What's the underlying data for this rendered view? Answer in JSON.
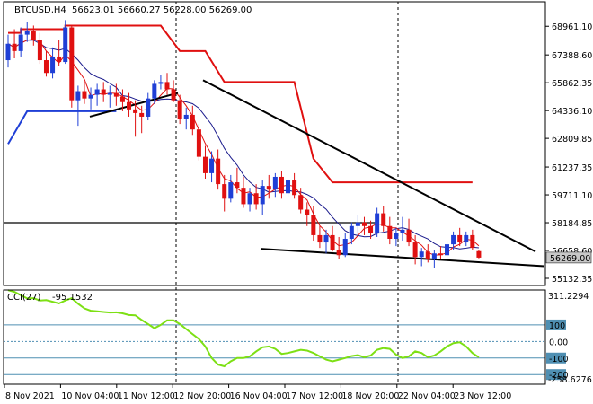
{
  "header": {
    "symbol": "BTCUSD,H4",
    "ohlc": "56623.01 56660.27 56228.00 56269.00"
  },
  "indicator": {
    "name": "CCI(27)",
    "value": "-95.1532",
    "levels": [
      "100",
      "0.00",
      "-100",
      "-200"
    ],
    "scale_max_label": "311.2294",
    "scale_min_label": "-258.6276"
  },
  "colors": {
    "bull": "#1f3fd6",
    "bear": "#e01010",
    "channel_upper": "#e01010",
    "channel_lower": "#1f3fd6",
    "ma_fast": "#e01010",
    "ma_slow": "#1a1a8c",
    "cci": "#7de014",
    "trendline": "#000000",
    "grid": "#000000",
    "level_line": "#4f8fb2"
  },
  "chart_data": [
    {
      "type": "candlestick",
      "title": "BTCUSD,H4",
      "ylim": [
        55132.35,
        70500
      ],
      "y_ticks": [
        "68961.10",
        "67388.60",
        "65862.35",
        "64336.10",
        "62809.85",
        "61237.35",
        "59711.10",
        "58184.85",
        "56658.60",
        "55132.35"
      ],
      "x_ticks": [
        "8 Nov 2021",
        "10 Nov 04:00",
        "11 Nov 12:00",
        "12 Nov 20:00",
        "16 Nov 04:00",
        "17 Nov 12:00",
        "18 Nov 20:00",
        "22 Nov 04:00",
        "23 Nov 12:00"
      ],
      "current_price": 56269.0,
      "current_price_label": "56269.00",
      "candles": [
        [
          67100,
          68500,
          66700,
          68000
        ],
        [
          68000,
          68800,
          67200,
          67600
        ],
        [
          67600,
          68900,
          67300,
          68500
        ],
        [
          68500,
          69200,
          68100,
          68700
        ],
        [
          68700,
          69000,
          67900,
          68200
        ],
        [
          68200,
          68600,
          66900,
          67100
        ],
        [
          67100,
          67600,
          66200,
          66400
        ],
        [
          66400,
          67800,
          66100,
          67300
        ],
        [
          67300,
          68200,
          66800,
          67000
        ],
        [
          67000,
          69300,
          66900,
          68900
        ],
        [
          68900,
          69000,
          64500,
          64900
        ],
        [
          64900,
          65700,
          63500,
          65400
        ],
        [
          65400,
          65900,
          64700,
          65000
        ],
        [
          65000,
          65600,
          64400,
          65200
        ],
        [
          65200,
          65800,
          64600,
          65500
        ],
        [
          65500,
          65900,
          64800,
          65200
        ],
        [
          65200,
          65700,
          64500,
          65300
        ],
        [
          65300,
          65800,
          64600,
          65100
        ],
        [
          65100,
          65500,
          64300,
          64800
        ],
        [
          64800,
          65300,
          64000,
          64400
        ],
        [
          64400,
          64900,
          62900,
          64200
        ],
        [
          64200,
          64600,
          63100,
          64000
        ],
        [
          64000,
          65300,
          63800,
          65000
        ],
        [
          65000,
          66000,
          64700,
          65800
        ],
        [
          65800,
          66300,
          65500,
          65900
        ],
        [
          65900,
          66400,
          65200,
          65500
        ],
        [
          65500,
          66000,
          64800,
          64900
        ],
        [
          64900,
          65200,
          63600,
          63900
        ],
        [
          63900,
          64500,
          63300,
          64100
        ],
        [
          64100,
          64600,
          63000,
          63300
        ],
        [
          63300,
          63600,
          61600,
          61800
        ],
        [
          61800,
          62400,
          60600,
          60900
        ],
        [
          60900,
          62100,
          60400,
          61700
        ],
        [
          61700,
          62200,
          60000,
          60300
        ],
        [
          60300,
          60800,
          58800,
          59500
        ],
        [
          59500,
          60800,
          59300,
          60400
        ],
        [
          60400,
          61200,
          59800,
          60100
        ],
        [
          60100,
          60700,
          59000,
          59200
        ],
        [
          59200,
          60100,
          58800,
          59800
        ],
        [
          59800,
          60300,
          58900,
          59200
        ],
        [
          59200,
          60500,
          58600,
          60200
        ],
        [
          60200,
          60800,
          59500,
          60000
        ],
        [
          60000,
          60900,
          59600,
          60700
        ],
        [
          60700,
          61000,
          59500,
          59800
        ],
        [
          59800,
          60600,
          59600,
          60500
        ],
        [
          60500,
          60900,
          59500,
          59700
        ],
        [
          59700,
          60100,
          58700,
          58900
        ],
        [
          58900,
          59300,
          58000,
          58600
        ],
        [
          58600,
          59100,
          57200,
          57500
        ],
        [
          57500,
          58000,
          56800,
          57100
        ],
        [
          57100,
          57800,
          56500,
          57500
        ],
        [
          57500,
          58000,
          56600,
          56700
        ],
        [
          56700,
          57400,
          56200,
          56400
        ],
        [
          56400,
          57600,
          56300,
          57300
        ],
        [
          57300,
          58200,
          57000,
          58000
        ],
        [
          58000,
          58600,
          57500,
          58200
        ],
        [
          58200,
          58500,
          57500,
          58000
        ],
        [
          58000,
          58300,
          57300,
          57600
        ],
        [
          57600,
          59000,
          57400,
          58700
        ],
        [
          58700,
          59100,
          57700,
          58000
        ],
        [
          58000,
          58500,
          57000,
          57300
        ],
        [
          57300,
          57900,
          56900,
          57600
        ],
        [
          57600,
          58500,
          57200,
          57800
        ],
        [
          57800,
          58400,
          56900,
          57100
        ],
        [
          57100,
          57500,
          55900,
          56300
        ],
        [
          56300,
          56800,
          55800,
          56600
        ],
        [
          56600,
          57000,
          56000,
          56200
        ],
        [
          56200,
          56700,
          55700,
          56500
        ],
        [
          56500,
          56900,
          56200,
          56400
        ],
        [
          56400,
          57200,
          56100,
          57000
        ],
        [
          57000,
          57700,
          56700,
          57500
        ],
        [
          57500,
          57900,
          56900,
          57100
        ],
        [
          57100,
          57700,
          56900,
          57500
        ],
        [
          57500,
          57800,
          56700,
          56800
        ],
        [
          56623.01,
          56660.27,
          56228.0,
          56269.0
        ]
      ],
      "channel_upper": [
        [
          0,
          68600
        ],
        [
          2,
          68600
        ],
        [
          2,
          68800
        ],
        [
          9,
          68800
        ],
        [
          9,
          69000
        ],
        [
          24,
          69000
        ],
        [
          27,
          67600
        ],
        [
          31,
          67600
        ],
        [
          34,
          65900
        ],
        [
          45,
          65900
        ],
        [
          48,
          61700
        ],
        [
          51,
          60400
        ],
        [
          73,
          60400
        ]
      ],
      "channel_lower": [
        [
          0,
          62500
        ],
        [
          3,
          64300
        ],
        [
          14,
          64300
        ],
        [
          17,
          64300
        ]
      ]
    },
    {
      "type": "line",
      "title": "CCI(27) -95.1532",
      "ylim": [
        -258.6276,
        311.2294
      ],
      "levels": [
        100,
        0,
        -100,
        -200
      ],
      "values": [
        310,
        300,
        280,
        260,
        262,
        248,
        250,
        240,
        230,
        248,
        262,
        228,
        200,
        186,
        182,
        178,
        175,
        176,
        170,
        160,
        158,
        130,
        105,
        80,
        100,
        128,
        128,
        105,
        75,
        45,
        15,
        -30,
        -100,
        -140,
        -150,
        -120,
        -100,
        -100,
        -90,
        -60,
        -35,
        -30,
        -45,
        -75,
        -70,
        -60,
        -50,
        -55,
        -70,
        -90,
        -110,
        -120,
        -110,
        -100,
        -88,
        -82,
        -95,
        -85,
        -50,
        -40,
        -45,
        -80,
        -100,
        -90,
        -60,
        -70,
        -95,
        -85,
        -60,
        -30,
        -10,
        -5,
        -30,
        -70,
        -95
      ]
    }
  ]
}
